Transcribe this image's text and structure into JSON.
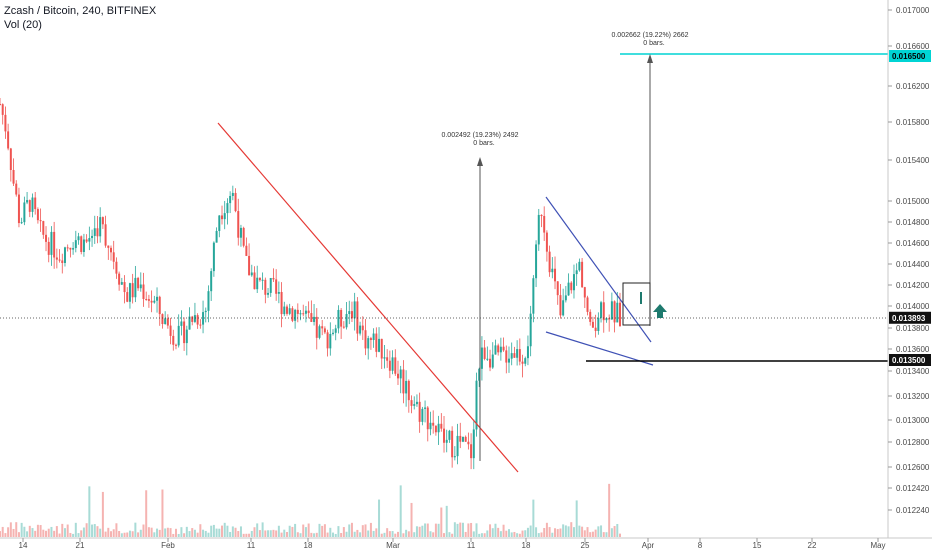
{
  "legend": {
    "symbol_line": "Zcash / Bitcoin, 240, BITFINEX",
    "volume_line": "Vol (20)"
  },
  "colors": {
    "up": "#26a69a",
    "down": "#ef5350",
    "vol_up": "#a8dbd6",
    "vol_down": "#f5b3b1",
    "red_trend": "#e53935",
    "blue_channel": "#3f51b5",
    "cyan_target": "#00d4d4",
    "axis_text": "#4a4a4a",
    "arrow_green": "#1e7a6e"
  },
  "chart_data": {
    "type": "candlestick",
    "symbol": "Zcash / Bitcoin",
    "timeframe": "240",
    "exchange": "BITFINEX",
    "indicator": "Vol (20)",
    "ylim": [
      0.0122,
      0.0171
    ],
    "y_ticks": [
      "0.017000",
      "0.016600",
      "0.016200",
      "0.015800",
      "0.015400",
      "0.015000",
      "0.014800",
      "0.014600",
      "0.014400",
      "0.014200",
      "0.014000",
      "0.013800",
      "0.013600",
      "0.013400",
      "0.013200",
      "0.013000",
      "0.012800",
      "0.012600",
      "0.012420",
      "0.012240"
    ],
    "x_ticks": [
      "14",
      "21",
      "Feb",
      "11",
      "18",
      "Mar",
      "11",
      "18",
      "25",
      "Apr",
      "8",
      "15",
      "22",
      "May"
    ],
    "current_price": "0.013893",
    "price_labels": [
      {
        "value": 0.0165,
        "text": "0.016500",
        "style": "cyan"
      },
      {
        "value": 0.013893,
        "text": "0.013893",
        "style": "dark"
      },
      {
        "value": 0.0135,
        "text": "0.013500",
        "style": "dark"
      }
    ],
    "annotations": [
      {
        "line1": "0.002492 (19.23%) 2492",
        "line2": "0 bars."
      },
      {
        "line1": "0.002662 (19.22%) 2662",
        "line2": "0 bars."
      }
    ],
    "price_path": [
      [
        0.0,
        0.016
      ],
      [
        0.01,
        0.0157
      ],
      [
        0.02,
        0.0152
      ],
      [
        0.03,
        0.0148
      ],
      [
        0.045,
        0.015
      ],
      [
        0.06,
        0.0147
      ],
      [
        0.075,
        0.0146
      ],
      [
        0.09,
        0.0145
      ],
      [
        0.11,
        0.01465
      ],
      [
        0.13,
        0.0146
      ],
      [
        0.15,
        0.0148
      ],
      [
        0.17,
        0.0145
      ],
      [
        0.19,
        0.0141
      ],
      [
        0.21,
        0.0142
      ],
      [
        0.23,
        0.01405
      ],
      [
        0.25,
        0.01385
      ],
      [
        0.27,
        0.0137
      ],
      [
        0.29,
        0.0139
      ],
      [
        0.31,
        0.01395
      ],
      [
        0.33,
        0.0149
      ],
      [
        0.35,
        0.0151
      ],
      [
        0.37,
        0.0144
      ],
      [
        0.39,
        0.0142
      ],
      [
        0.41,
        0.01415
      ],
      [
        0.43,
        0.014
      ],
      [
        0.45,
        0.01395
      ],
      [
        0.47,
        0.0138
      ],
      [
        0.49,
        0.0137
      ],
      [
        0.51,
        0.01385
      ],
      [
        0.53,
        0.014
      ],
      [
        0.55,
        0.0137
      ],
      [
        0.57,
        0.01365
      ],
      [
        0.59,
        0.0135
      ],
      [
        0.61,
        0.0133
      ],
      [
        0.63,
        0.0131
      ],
      [
        0.65,
        0.013
      ],
      [
        0.67,
        0.0128
      ],
      [
        0.69,
        0.0128
      ],
      [
        0.71,
        0.0127
      ],
      [
        0.72,
        0.0134
      ],
      [
        0.73,
        0.0136
      ],
      [
        0.75,
        0.0135
      ],
      [
        0.77,
        0.0136
      ],
      [
        0.79,
        0.01355
      ],
      [
        0.8,
        0.0138
      ],
      [
        0.815,
        0.015
      ],
      [
        0.83,
        0.0144
      ],
      [
        0.845,
        0.0139
      ],
      [
        0.86,
        0.0142
      ],
      [
        0.875,
        0.0144
      ],
      [
        0.89,
        0.01375
      ],
      [
        0.905,
        0.014
      ],
      [
        0.92,
        0.01395
      ],
      [
        0.935,
        0.0139
      ]
    ]
  }
}
